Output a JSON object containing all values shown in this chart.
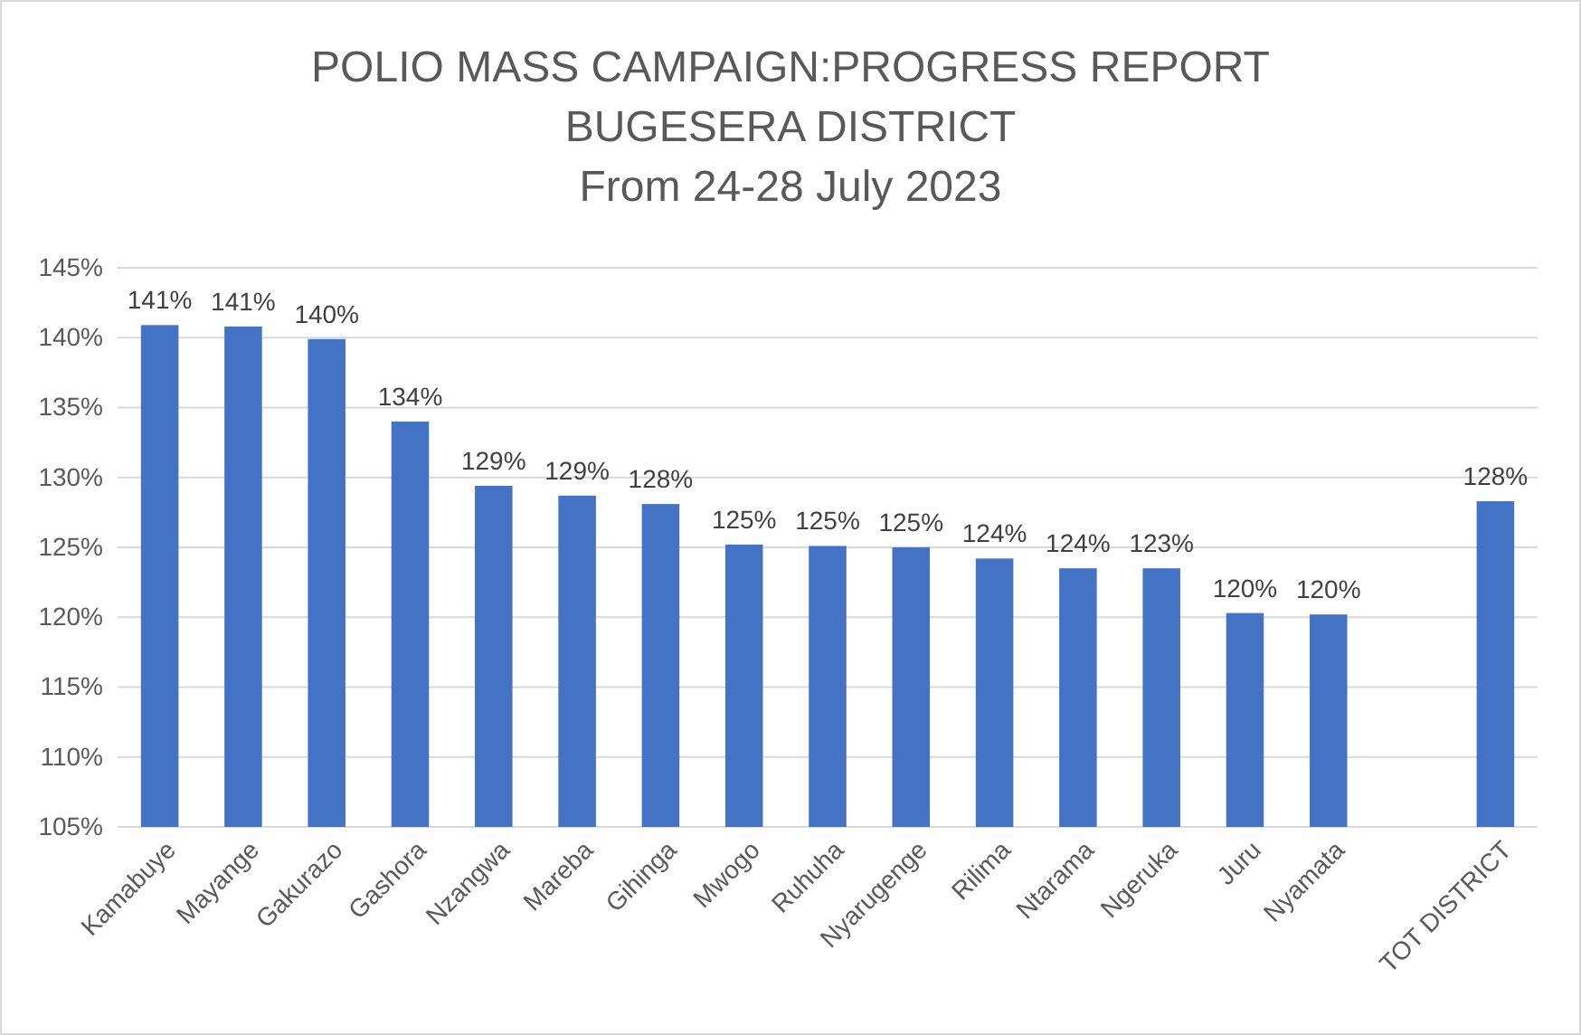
{
  "chart_data": {
    "type": "bar",
    "title": "POLIO MASS CAMPAIGN:PROGRESS REPORT\nBUGESERA DISTRICT\nFrom 24-28 July 2023",
    "categories": [
      "Kamabuye",
      "Mayange",
      "Gakurazo",
      "Gashora",
      "Nzangwa",
      "Mareba",
      "Gihinga",
      "Mwogo",
      "Ruhuha",
      "Nyarugenge",
      "Rilima",
      "Ntarama",
      "Ngeruka",
      "Juru",
      "Nyamata",
      null,
      "TOT DISTRICT"
    ],
    "values": [
      140.9,
      140.8,
      139.9,
      134.0,
      129.4,
      128.7,
      128.1,
      125.2,
      125.1,
      125.0,
      124.2,
      123.5,
      123.5,
      120.3,
      120.2,
      null,
      128.3
    ],
    "value_labels": [
      "141%",
      "141%",
      "140%",
      "134%",
      "129%",
      "129%",
      "128%",
      "125%",
      "125%",
      "125%",
      "124%",
      "124%",
      "123%",
      "120%",
      "120%",
      null,
      "128%"
    ],
    "color": "#4472c4",
    "ylim": [
      105,
      145
    ],
    "yticks": [
      {
        "value": 105,
        "label": "105%"
      },
      {
        "value": 110,
        "label": "110%"
      },
      {
        "value": 115,
        "label": "115%"
      },
      {
        "value": 120,
        "label": "120%"
      },
      {
        "value": 125,
        "label": "125%"
      },
      {
        "value": 130,
        "label": "130%"
      },
      {
        "value": 135,
        "label": "135%"
      },
      {
        "value": 140,
        "label": "140%"
      },
      {
        "value": 145,
        "label": "145%"
      }
    ],
    "grid": "y"
  }
}
